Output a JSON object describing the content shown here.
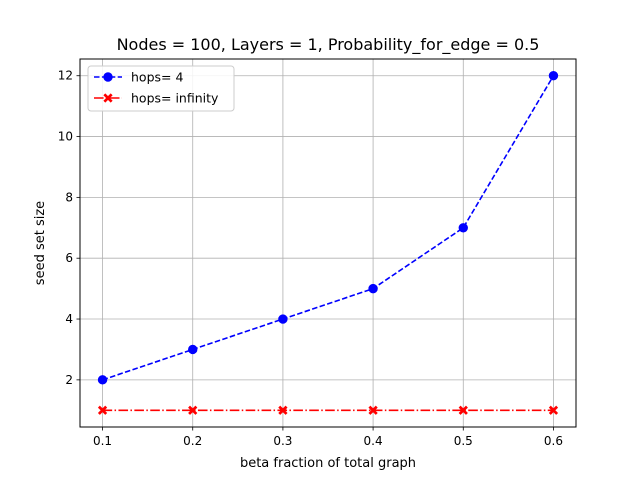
{
  "chart_data": {
    "type": "line",
    "title": "Nodes = 100, Layers = 1, Probability_for_edge = 0.5",
    "xlabel": "beta fraction of total graph",
    "ylabel": "seed set size",
    "x": [
      0.1,
      0.2,
      0.3,
      0.4,
      0.5,
      0.6
    ],
    "xticks": [
      "0.1",
      "0.2",
      "0.3",
      "0.4",
      "0.5",
      "0.6"
    ],
    "yticks": [
      "2",
      "4",
      "6",
      "8",
      "10",
      "12"
    ],
    "xlim": [
      0.075,
      0.625
    ],
    "ylim": [
      0.45,
      12.55
    ],
    "grid": true,
    "legend_position": "upper-left",
    "series": [
      {
        "name": "hops= 4",
        "values": [
          2,
          3,
          4,
          5,
          7,
          12
        ],
        "color": "#0000ff",
        "linestyle": "dashed",
        "marker": "circle"
      },
      {
        "name": "hops= infinity",
        "values": [
          1,
          1,
          1,
          1,
          1,
          1
        ],
        "color": "#ff0000",
        "linestyle": "dashdot",
        "marker": "x-filled"
      }
    ]
  }
}
